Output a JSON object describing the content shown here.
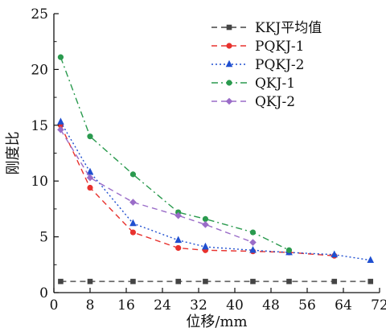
{
  "chart_data": {
    "type": "line",
    "title": "",
    "xlabel": "位移/mm",
    "ylabel": "刚度比",
    "xlim": [
      0,
      72
    ],
    "ylim": [
      0,
      25
    ],
    "x_ticks": [
      0,
      8,
      16,
      24,
      32,
      40,
      48,
      56,
      64,
      72
    ],
    "y_ticks": [
      0,
      5,
      10,
      15,
      20,
      25
    ],
    "grid": false,
    "legend_position": "top-right",
    "series": [
      {
        "name": "KKJ平均值",
        "color": "#444444",
        "line_style": "dash",
        "marker": "square",
        "x": [
          1.5,
          8,
          17.5,
          27.5,
          33.5,
          44,
          52,
          62,
          70
        ],
        "y": [
          1.0,
          1.0,
          1.0,
          1.0,
          1.0,
          1.0,
          1.0,
          1.0,
          1.0
        ]
      },
      {
        "name": "PQKJ-1",
        "color": "#e8322e",
        "line_style": "dash",
        "marker": "circle",
        "x": [
          1.5,
          8,
          17.5,
          27.5,
          33.5,
          44,
          52,
          62
        ],
        "y": [
          15.0,
          9.4,
          5.4,
          4.0,
          3.8,
          3.7,
          3.6,
          3.3
        ]
      },
      {
        "name": "PQKJ-2",
        "color": "#1f4fd0",
        "line_style": "dot",
        "marker": "triangle",
        "x": [
          1.5,
          8,
          17.5,
          27.5,
          33.5,
          44,
          52,
          62,
          70
        ],
        "y": [
          15.3,
          10.8,
          6.2,
          4.7,
          4.1,
          3.8,
          3.6,
          3.4,
          2.9
        ]
      },
      {
        "name": "QKJ-1",
        "color": "#2a9a4e",
        "line_style": "dashdot",
        "marker": "circle",
        "x": [
          1.5,
          8,
          17.5,
          27.5,
          33.5,
          44,
          52
        ],
        "y": [
          21.1,
          14.0,
          10.6,
          7.2,
          6.6,
          5.4,
          3.8
        ]
      },
      {
        "name": "QKJ-2",
        "color": "#9a6cc8",
        "line_style": "dash",
        "marker": "diamond",
        "x": [
          1.5,
          8,
          17.5,
          27.5,
          33.5,
          44
        ],
        "y": [
          14.6,
          10.3,
          8.1,
          6.9,
          6.1,
          4.5
        ]
      }
    ]
  }
}
